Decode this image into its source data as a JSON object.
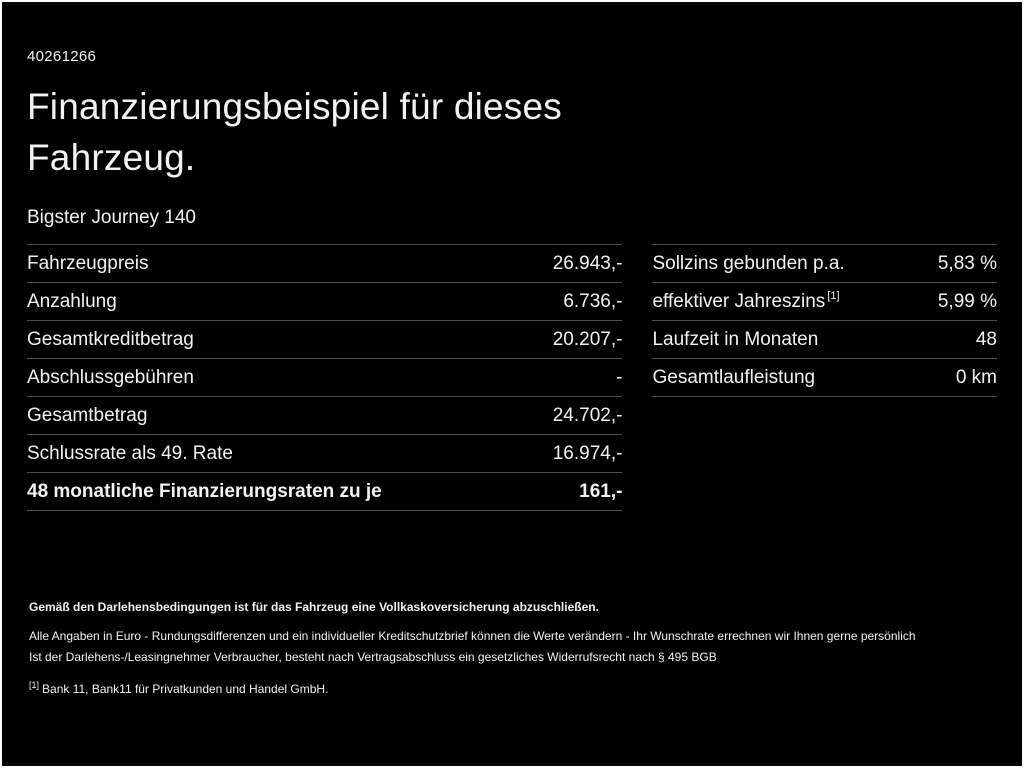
{
  "header": {
    "reference": "40261266",
    "title": "Finanzierungsbeispiel für dieses Fahrzeug.",
    "model": "Bigster Journey 140"
  },
  "left_table": {
    "rows": [
      {
        "label": "Fahrzeugpreis",
        "value": "26.943,-"
      },
      {
        "label": "Anzahlung",
        "value": "6.736,-"
      },
      {
        "label": "Gesamtkreditbetrag",
        "value": "20.207,-"
      },
      {
        "label": "Abschlussgebühren",
        "value": "-"
      },
      {
        "label": "Gesamtbetrag",
        "value": "24.702,-"
      },
      {
        "label": "Schlussrate als 49. Rate",
        "value": "16.974,-"
      },
      {
        "label": "48 monatliche Finanzierungsraten zu je",
        "value": "161,-"
      }
    ]
  },
  "right_table": {
    "rows": [
      {
        "label": "Sollzins gebunden p.a.",
        "sup": "",
        "value": "5,83 %"
      },
      {
        "label": "effektiver Jahreszins",
        "sup": "[1]",
        "value": "5,99 %"
      },
      {
        "label": "Laufzeit in Monaten",
        "sup": "",
        "value": "48"
      },
      {
        "label": "Gesamtlaufleistung",
        "sup": "",
        "value": "0 km"
      }
    ]
  },
  "footer": {
    "line1": "Gemäß den Darlehensbedingungen ist für das Fahrzeug eine Vollkaskoversicherung abzuschließen.",
    "line2": "Alle Angaben in Euro - Rundungsdifferenzen und ein individueller Kreditschutzbrief können die Werte verändern - Ihr Wunschrate errechnen wir Ihnen gerne persönlich",
    "line3": "Ist der Darlehens-/Leasingnehmer Verbraucher, besteht nach Vertragsabschluss ein gesetzliches Widerrufsrecht nach § 495 BGB",
    "footnote_marker": "[1]",
    "footnote_text": "Bank 11, Bank11 für Privatkunden und Handel GmbH."
  },
  "colors": {
    "background": "#000000",
    "text": "#f2f2f2",
    "divider": "#4f4f4f"
  }
}
